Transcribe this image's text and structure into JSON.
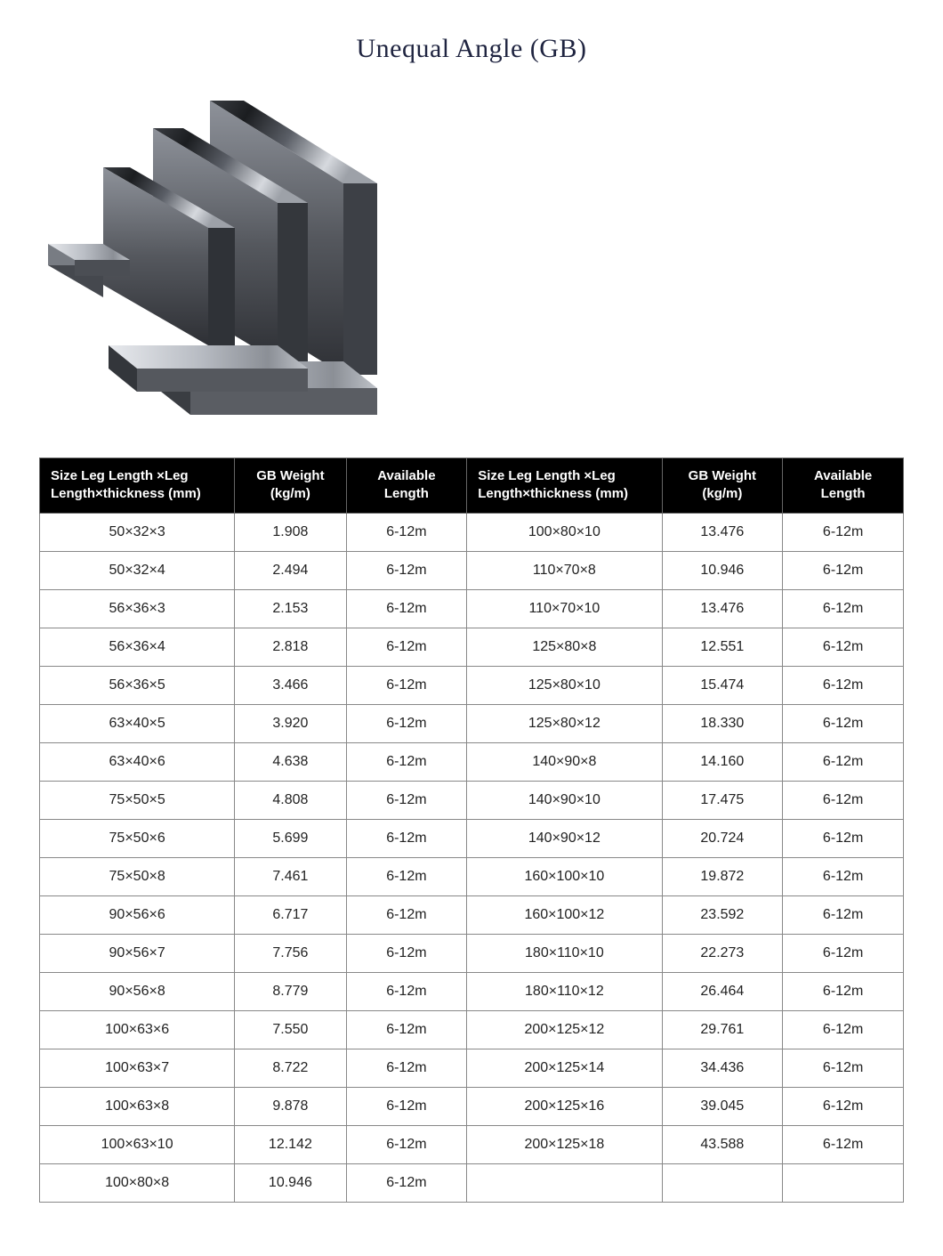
{
  "title": "Unequal Angle (GB)",
  "hero_image": {
    "description": "three nested steel L-angle profiles",
    "colors": {
      "steel_dark": "#2a2c30",
      "steel_mid": "#6c7078",
      "steel_light": "#c7cbd2",
      "highlight": "#f2f4f7",
      "shadow": "#0d0e10"
    }
  },
  "table": {
    "header_bg": "#000000",
    "header_fg": "#ffffff",
    "border_color": "#888888",
    "text_color": "#222222",
    "columns": [
      "Size Leg Length ×Leg Length×thickness (mm)",
      "GB Weight (kg/m)",
      "Available Length",
      "Size Leg Length ×Leg Length×thickness (mm)",
      "GB Weight (kg/m)",
      "Available Length"
    ],
    "rows": [
      [
        "50×32×3",
        "1.908",
        "6-12m",
        "100×80×10",
        "13.476",
        "6-12m"
      ],
      [
        "50×32×4",
        "2.494",
        "6-12m",
        "110×70×8",
        "10.946",
        "6-12m"
      ],
      [
        "56×36×3",
        "2.153",
        "6-12m",
        "110×70×10",
        "13.476",
        "6-12m"
      ],
      [
        "56×36×4",
        "2.818",
        "6-12m",
        "125×80×8",
        "12.551",
        "6-12m"
      ],
      [
        "56×36×5",
        "3.466",
        "6-12m",
        "125×80×10",
        "15.474",
        "6-12m"
      ],
      [
        "63×40×5",
        "3.920",
        "6-12m",
        "125×80×12",
        "18.330",
        "6-12m"
      ],
      [
        "63×40×6",
        "4.638",
        "6-12m",
        "140×90×8",
        "14.160",
        "6-12m"
      ],
      [
        "75×50×5",
        "4.808",
        "6-12m",
        "140×90×10",
        "17.475",
        "6-12m"
      ],
      [
        "75×50×6",
        "5.699",
        "6-12m",
        "140×90×12",
        "20.724",
        "6-12m"
      ],
      [
        "75×50×8",
        "7.461",
        "6-12m",
        "160×100×10",
        "19.872",
        "6-12m"
      ],
      [
        "90×56×6",
        "6.717",
        "6-12m",
        "160×100×12",
        "23.592",
        "6-12m"
      ],
      [
        "90×56×7",
        "7.756",
        "6-12m",
        "180×110×10",
        "22.273",
        "6-12m"
      ],
      [
        "90×56×8",
        "8.779",
        "6-12m",
        "180×110×12",
        "26.464",
        "6-12m"
      ],
      [
        "100×63×6",
        "7.550",
        "6-12m",
        "200×125×12",
        "29.761",
        "6-12m"
      ],
      [
        "100×63×7",
        "8.722",
        "6-12m",
        "200×125×14",
        "34.436",
        "6-12m"
      ],
      [
        "100×63×8",
        "9.878",
        "6-12m",
        "200×125×16",
        "39.045",
        "6-12m"
      ],
      [
        "100×63×10",
        "12.142",
        "6-12m",
        "200×125×18",
        "43.588",
        "6-12m"
      ],
      [
        "100×80×8",
        "10.946",
        "6-12m",
        "",
        "",
        ""
      ]
    ]
  }
}
